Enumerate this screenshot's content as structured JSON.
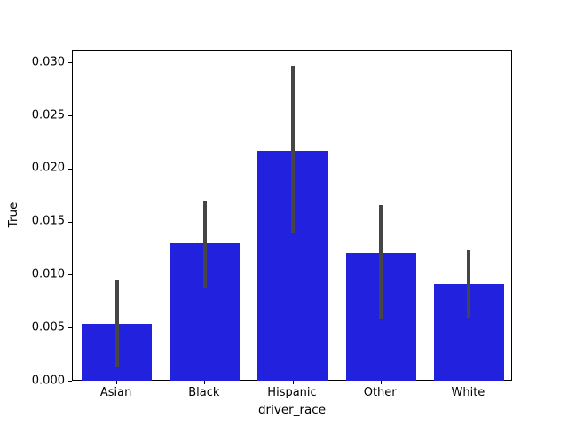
{
  "chart_data": {
    "type": "bar",
    "title": "",
    "xlabel": "driver_race",
    "ylabel": "True",
    "categories": [
      "Asian",
      "Black",
      "Hispanic",
      "Other",
      "White"
    ],
    "values": [
      0.0054,
      0.013,
      0.0217,
      0.0121,
      0.0092
    ],
    "error_bars": {
      "lower": [
        0.0013,
        0.0087,
        0.0139,
        0.0058,
        0.006
      ],
      "upper": [
        0.0096,
        0.017,
        0.0297,
        0.0166,
        0.0123
      ]
    },
    "ylim": [
      0,
      0.0312
    ],
    "yticks": [
      0.0,
      0.005,
      0.01,
      0.015,
      0.02,
      0.025,
      0.03
    ],
    "ytick_labels": [
      "0.000",
      "0.005",
      "0.010",
      "0.015",
      "0.020",
      "0.025",
      "0.030"
    ],
    "bar_color": "#2121de",
    "error_color": "#454545",
    "bar_width_fraction": 0.8,
    "grid": false,
    "legend": null
  }
}
